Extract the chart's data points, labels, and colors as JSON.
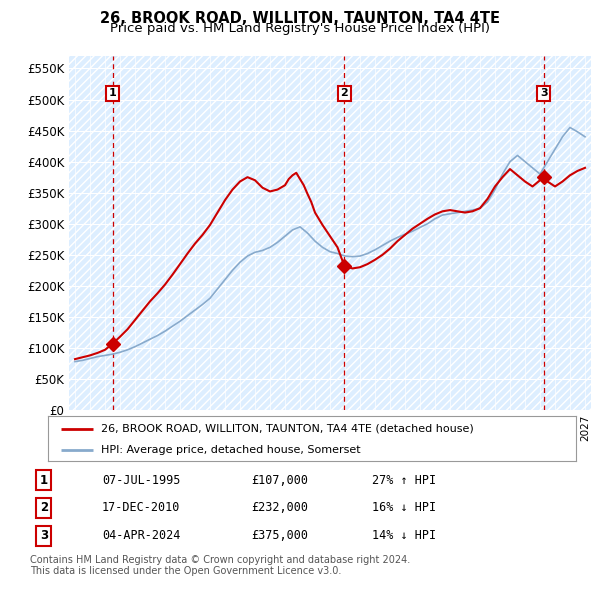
{
  "title": "26, BROOK ROAD, WILLITON, TAUNTON, TA4 4TE",
  "subtitle": "Price paid vs. HM Land Registry's House Price Index (HPI)",
  "ylim": [
    0,
    570000
  ],
  "yticks": [
    0,
    50000,
    100000,
    150000,
    200000,
    250000,
    300000,
    350000,
    400000,
    450000,
    500000,
    550000
  ],
  "ytick_labels": [
    "£0",
    "£50K",
    "£100K",
    "£150K",
    "£200K",
    "£250K",
    "£300K",
    "£350K",
    "£400K",
    "£450K",
    "£500K",
    "£550K"
  ],
  "background_color": "#ffffff",
  "plot_bg_color": "#ddeeff",
  "grid_color": "#ffffff",
  "sale_color": "#cc0000",
  "vline_color": "#cc0000",
  "hpi_color": "#88aacc",
  "legend_label_house": "26, BROOK ROAD, WILLITON, TAUNTON, TA4 4TE (detached house)",
  "legend_label_hpi": "HPI: Average price, detached house, Somerset",
  "table_rows": [
    [
      "1",
      "07-JUL-1995",
      "£107,000",
      "27% ↑ HPI"
    ],
    [
      "2",
      "17-DEC-2010",
      "£232,000",
      "16% ↓ HPI"
    ],
    [
      "3",
      "04-APR-2024",
      "£375,000",
      "14% ↓ HPI"
    ]
  ],
  "footer": "Contains HM Land Registry data © Crown copyright and database right 2024.\nThis data is licensed under the Open Government Licence v3.0.",
  "sale_year_vals": [
    1995.52,
    2010.96,
    2024.25
  ],
  "sale_prices": [
    107000,
    232000,
    375000
  ],
  "sale_labels": [
    "1",
    "2",
    "3"
  ],
  "hpi_x": [
    1993.0,
    1993.5,
    1994.0,
    1994.5,
    1995.0,
    1995.5,
    1996.0,
    1996.5,
    1997.0,
    1997.5,
    1998.0,
    1998.5,
    1999.0,
    1999.5,
    2000.0,
    2000.5,
    2001.0,
    2001.5,
    2002.0,
    2002.5,
    2003.0,
    2003.5,
    2004.0,
    2004.5,
    2005.0,
    2005.5,
    2006.0,
    2006.5,
    2007.0,
    2007.5,
    2008.0,
    2008.5,
    2009.0,
    2009.5,
    2010.0,
    2010.5,
    2011.0,
    2011.5,
    2012.0,
    2012.5,
    2013.0,
    2013.5,
    2014.0,
    2014.5,
    2015.0,
    2015.5,
    2016.0,
    2016.5,
    2017.0,
    2017.5,
    2018.0,
    2018.5,
    2019.0,
    2019.5,
    2020.0,
    2020.5,
    2021.0,
    2021.5,
    2022.0,
    2022.5,
    2023.0,
    2023.5,
    2024.0,
    2024.5,
    2025.0,
    2025.5,
    2026.0,
    2026.5,
    2027.0
  ],
  "hpi_y": [
    78000,
    80000,
    83000,
    86000,
    88000,
    90000,
    93000,
    97000,
    102000,
    108000,
    114000,
    120000,
    127000,
    135000,
    143000,
    152000,
    161000,
    170000,
    180000,
    195000,
    210000,
    225000,
    238000,
    248000,
    254000,
    257000,
    262000,
    270000,
    280000,
    290000,
    295000,
    285000,
    272000,
    262000,
    255000,
    252000,
    248000,
    247000,
    248000,
    252000,
    258000,
    265000,
    272000,
    278000,
    283000,
    288000,
    294000,
    300000,
    308000,
    314000,
    316000,
    318000,
    320000,
    322000,
    325000,
    335000,
    355000,
    380000,
    400000,
    410000,
    400000,
    390000,
    380000,
    400000,
    420000,
    440000,
    455000,
    448000,
    440000
  ],
  "prop_x": [
    1993.0,
    1993.5,
    1994.0,
    1994.5,
    1995.0,
    1995.52,
    1996.0,
    1996.5,
    1997.0,
    1997.5,
    1998.0,
    1998.5,
    1999.0,
    1999.5,
    2000.0,
    2000.5,
    2001.0,
    2001.5,
    2002.0,
    2002.5,
    2003.0,
    2003.5,
    2004.0,
    2004.5,
    2005.0,
    2005.5,
    2006.0,
    2006.5,
    2007.0,
    2007.25,
    2007.5,
    2007.75,
    2008.0,
    2008.25,
    2008.5,
    2008.75,
    2009.0,
    2009.5,
    2010.0,
    2010.5,
    2010.96,
    2011.5,
    2012.0,
    2012.5,
    2013.0,
    2013.5,
    2014.0,
    2014.5,
    2015.0,
    2015.5,
    2016.0,
    2016.5,
    2017.0,
    2017.5,
    2018.0,
    2018.5,
    2019.0,
    2019.5,
    2020.0,
    2020.5,
    2021.0,
    2021.5,
    2022.0,
    2022.5,
    2023.0,
    2023.5,
    2024.25,
    2024.5,
    2025.0,
    2025.5,
    2026.0,
    2026.5,
    2027.0
  ],
  "prop_y": [
    82000,
    85000,
    88000,
    92000,
    97000,
    107000,
    118000,
    130000,
    145000,
    160000,
    175000,
    188000,
    202000,
    218000,
    235000,
    252000,
    268000,
    282000,
    298000,
    318000,
    338000,
    355000,
    368000,
    375000,
    370000,
    358000,
    352000,
    355000,
    362000,
    372000,
    378000,
    382000,
    372000,
    362000,
    348000,
    335000,
    318000,
    298000,
    280000,
    262000,
    232000,
    228000,
    230000,
    235000,
    242000,
    250000,
    260000,
    272000,
    282000,
    292000,
    300000,
    308000,
    315000,
    320000,
    322000,
    320000,
    318000,
    320000,
    325000,
    340000,
    360000,
    375000,
    388000,
    378000,
    368000,
    360000,
    375000,
    368000,
    360000,
    368000,
    378000,
    385000,
    390000
  ]
}
